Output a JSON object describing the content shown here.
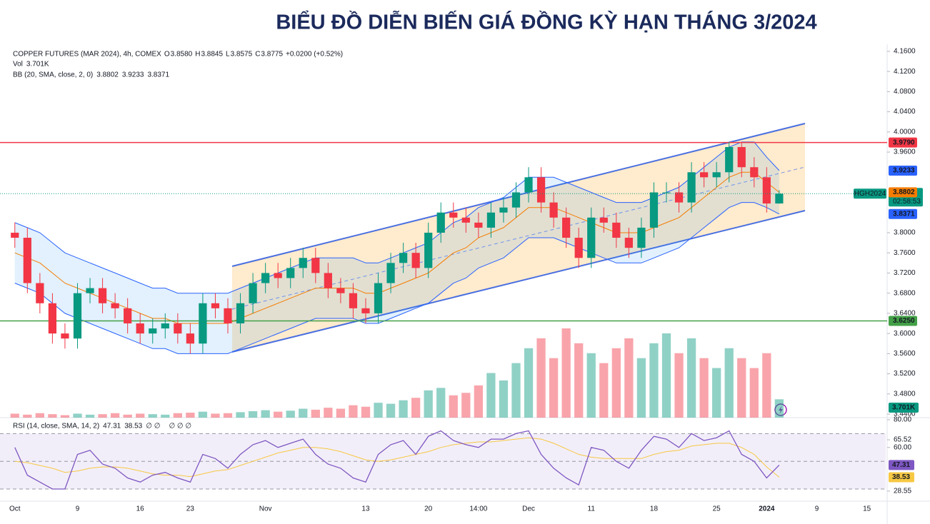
{
  "page_title": "BIỂU ĐỒ DIỄN BIẾN GIÁ ĐỒNG KỲ HẠN THÁNG 3/2024",
  "chart_data": {
    "type": "candlestick",
    "header": {
      "symbol": "COPPER FUTURES (MAR 2024), 4h, COMEX",
      "items": [
        {
          "label": "O",
          "value": "3.8580"
        },
        {
          "label": "H",
          "value": "3.8845"
        },
        {
          "label": "L",
          "value": "3.8575"
        },
        {
          "label": "C",
          "value": "3.8775"
        }
      ],
      "change": "+0.0200 (+0.52%)"
    },
    "up_color": "#089981",
    "down_color": "#f23645",
    "categories": [
      "Oct",
      null,
      null,
      null,
      null,
      "9",
      null,
      null,
      null,
      null,
      "16",
      null,
      null,
      null,
      "23",
      null,
      null,
      null,
      null,
      null,
      "Nov",
      null,
      null,
      null,
      null,
      null,
      null,
      null,
      "13",
      null,
      null,
      null,
      null,
      "20",
      null,
      null,
      null,
      "14:00",
      null,
      null,
      null,
      "Dec",
      null,
      null,
      null,
      null,
      "11",
      null,
      null,
      null,
      null,
      "18",
      null,
      null,
      null,
      null,
      "25",
      null,
      null,
      null,
      "2024",
      null,
      null,
      null,
      "9",
      null,
      null,
      null,
      "15",
      null
    ],
    "candles": [
      [
        3.8,
        3.82,
        3.77,
        3.79
      ],
      [
        3.79,
        3.81,
        3.68,
        3.7
      ],
      [
        3.7,
        3.72,
        3.64,
        3.66
      ],
      [
        3.66,
        3.68,
        3.58,
        3.6
      ],
      [
        3.6,
        3.62,
        3.57,
        3.59
      ],
      [
        3.59,
        3.7,
        3.57,
        3.68
      ],
      [
        3.68,
        3.71,
        3.66,
        3.69
      ],
      [
        3.69,
        3.71,
        3.64,
        3.66
      ],
      [
        3.66,
        3.68,
        3.63,
        3.65
      ],
      [
        3.65,
        3.67,
        3.6,
        3.62
      ],
      [
        3.62,
        3.64,
        3.58,
        3.6
      ],
      [
        3.6,
        3.63,
        3.58,
        3.61
      ],
      [
        3.61,
        3.64,
        3.59,
        3.62
      ],
      [
        3.62,
        3.64,
        3.58,
        3.6
      ],
      [
        3.6,
        3.62,
        3.56,
        3.58
      ],
      [
        3.58,
        3.68,
        3.56,
        3.66
      ],
      [
        3.66,
        3.68,
        3.63,
        3.65
      ],
      [
        3.65,
        3.67,
        3.6,
        3.62
      ],
      [
        3.62,
        3.68,
        3.6,
        3.66
      ],
      [
        3.66,
        3.72,
        3.64,
        3.7
      ],
      [
        3.7,
        3.74,
        3.68,
        3.72
      ],
      [
        3.72,
        3.74,
        3.69,
        3.71
      ],
      [
        3.71,
        3.75,
        3.69,
        3.73
      ],
      [
        3.73,
        3.77,
        3.71,
        3.75
      ],
      [
        3.75,
        3.77,
        3.7,
        3.72
      ],
      [
        3.72,
        3.74,
        3.67,
        3.69
      ],
      [
        3.69,
        3.71,
        3.66,
        3.68
      ],
      [
        3.68,
        3.7,
        3.63,
        3.65
      ],
      [
        3.65,
        3.67,
        3.62,
        3.64
      ],
      [
        3.64,
        3.72,
        3.62,
        3.7
      ],
      [
        3.7,
        3.76,
        3.68,
        3.74
      ],
      [
        3.74,
        3.78,
        3.72,
        3.76
      ],
      [
        3.76,
        3.78,
        3.71,
        3.73
      ],
      [
        3.73,
        3.82,
        3.71,
        3.8
      ],
      [
        3.8,
        3.86,
        3.78,
        3.84
      ],
      [
        3.84,
        3.86,
        3.81,
        3.83
      ],
      [
        3.83,
        3.85,
        3.8,
        3.82
      ],
      [
        3.82,
        3.84,
        3.79,
        3.81
      ],
      [
        3.81,
        3.86,
        3.79,
        3.84
      ],
      [
        3.84,
        3.87,
        3.82,
        3.85
      ],
      [
        3.85,
        3.9,
        3.83,
        3.88
      ],
      [
        3.88,
        3.93,
        3.86,
        3.91
      ],
      [
        3.91,
        3.93,
        3.84,
        3.86
      ],
      [
        3.86,
        3.88,
        3.81,
        3.83
      ],
      [
        3.83,
        3.85,
        3.77,
        3.79
      ],
      [
        3.79,
        3.81,
        3.73,
        3.75
      ],
      [
        3.75,
        3.85,
        3.73,
        3.83
      ],
      [
        3.83,
        3.85,
        3.8,
        3.82
      ],
      [
        3.82,
        3.84,
        3.77,
        3.79
      ],
      [
        3.79,
        3.81,
        3.75,
        3.77
      ],
      [
        3.77,
        3.83,
        3.75,
        3.81
      ],
      [
        3.81,
        3.9,
        3.79,
        3.88
      ],
      [
        3.88,
        3.9,
        3.86,
        3.88
      ],
      [
        3.88,
        3.9,
        3.84,
        3.86
      ],
      [
        3.86,
        3.94,
        3.84,
        3.92
      ],
      [
        3.92,
        3.94,
        3.89,
        3.91
      ],
      [
        3.91,
        3.94,
        3.89,
        3.92
      ],
      [
        3.92,
        3.98,
        3.9,
        3.97
      ],
      [
        3.97,
        3.98,
        3.91,
        3.93
      ],
      [
        3.93,
        3.95,
        3.89,
        3.91
      ],
      [
        3.91,
        3.93,
        3.84,
        3.858
      ],
      [
        3.858,
        3.8845,
        3.8575,
        3.8775
      ],
      null,
      null,
      null,
      null,
      null,
      null,
      null,
      null
    ],
    "ylim": [
      3.433,
      4.174
    ],
    "yticks": [
      {
        "value": 4.16,
        "label": "4.1600"
      },
      {
        "value": 4.12,
        "label": "4.1200"
      },
      {
        "value": 4.08,
        "label": "4.0800"
      },
      {
        "value": 4.04,
        "label": "4.0400"
      },
      {
        "value": 4.0,
        "label": "4.0000"
      },
      {
        "value": 3.96,
        "label": "3.9600"
      },
      {
        "value": 3.8,
        "label": "3.8000"
      },
      {
        "value": 3.76,
        "label": "3.7600"
      },
      {
        "value": 3.72,
        "label": "3.7200"
      },
      {
        "value": 3.68,
        "label": "3.6800"
      },
      {
        "value": 3.64,
        "label": "3.6400"
      },
      {
        "value": 3.6,
        "label": "3.6000"
      },
      {
        "value": 3.56,
        "label": "3.5600"
      },
      {
        "value": 3.52,
        "label": "3.5200"
      },
      {
        "value": 3.48,
        "label": "3.4800"
      },
      {
        "value": 3.44,
        "label": "3.4400"
      }
    ],
    "levels": [
      {
        "value": 3.979,
        "label": "3.9790",
        "color": "#f23645"
      },
      {
        "value": 3.625,
        "label": "3.6250",
        "color": "#43a047"
      }
    ],
    "last_price": {
      "symbol": "HGH2024",
      "label": "3.8775",
      "countdown": "02:58:53"
    },
    "volume": {
      "name": "Vol",
      "label": "3.701K",
      "values": [
        0.8,
        0.6,
        0.9,
        0.7,
        0.5,
        0.8,
        0.6,
        0.7,
        0.9,
        0.6,
        0.8,
        0.7,
        0.6,
        0.9,
        1.0,
        1.2,
        0.8,
        0.9,
        1.1,
        1.3,
        1.5,
        1.2,
        1.4,
        1.8,
        1.6,
        2.0,
        1.8,
        2.5,
        2.2,
        3.0,
        2.8,
        3.5,
        4.0,
        5.5,
        6.0,
        4.5,
        5.0,
        6.5,
        9.0,
        7.5,
        11,
        14,
        16,
        12,
        18,
        15,
        13,
        11,
        14,
        16,
        12,
        15,
        17,
        13,
        16,
        12,
        10,
        14,
        12,
        10,
        13,
        3.701,
        null,
        null,
        null,
        null,
        null,
        null,
        null,
        null
      ]
    },
    "bb": {
      "name": "BB (20, SMA, close, 2, 0)",
      "middle_label": "3.8802",
      "upper_label": "3.9233",
      "lower_label": "3.8371",
      "middle_color": "#f57c00",
      "band_color": "#2962ff",
      "middle": [
        3.76,
        3.75,
        3.74,
        3.72,
        3.7,
        3.69,
        3.68,
        3.67,
        3.66,
        3.65,
        3.64,
        3.63,
        3.63,
        3.62,
        3.62,
        3.62,
        3.62,
        3.62,
        3.63,
        3.64,
        3.65,
        3.66,
        3.67,
        3.68,
        3.69,
        3.69,
        3.69,
        3.69,
        3.68,
        3.68,
        3.69,
        3.7,
        3.71,
        3.72,
        3.74,
        3.76,
        3.77,
        3.79,
        3.8,
        3.81,
        3.83,
        3.85,
        3.85,
        3.85,
        3.84,
        3.83,
        3.82,
        3.81,
        3.8,
        3.8,
        3.8,
        3.81,
        3.82,
        3.83,
        3.85,
        3.87,
        3.89,
        3.91,
        3.92,
        3.92,
        3.9,
        3.8802,
        null,
        null,
        null,
        null,
        null,
        null,
        null,
        null
      ],
      "upper": [
        3.82,
        3.81,
        3.8,
        3.78,
        3.76,
        3.75,
        3.74,
        3.73,
        3.72,
        3.71,
        3.7,
        3.69,
        3.69,
        3.68,
        3.68,
        3.68,
        3.68,
        3.68,
        3.69,
        3.7,
        3.71,
        3.72,
        3.73,
        3.74,
        3.75,
        3.75,
        3.75,
        3.75,
        3.74,
        3.74,
        3.75,
        3.76,
        3.77,
        3.78,
        3.8,
        3.82,
        3.83,
        3.85,
        3.86,
        3.87,
        3.89,
        3.91,
        3.91,
        3.91,
        3.9,
        3.89,
        3.88,
        3.87,
        3.86,
        3.86,
        3.86,
        3.87,
        3.88,
        3.89,
        3.91,
        3.93,
        3.95,
        3.97,
        3.98,
        3.98,
        3.95,
        3.9233,
        null,
        null,
        null,
        null,
        null,
        null,
        null,
        null
      ],
      "lower": [
        3.7,
        3.69,
        3.68,
        3.66,
        3.64,
        3.63,
        3.62,
        3.61,
        3.6,
        3.59,
        3.58,
        3.57,
        3.57,
        3.56,
        3.56,
        3.56,
        3.56,
        3.56,
        3.57,
        3.58,
        3.59,
        3.6,
        3.61,
        3.62,
        3.63,
        3.63,
        3.63,
        3.63,
        3.62,
        3.62,
        3.63,
        3.64,
        3.65,
        3.66,
        3.68,
        3.7,
        3.71,
        3.73,
        3.74,
        3.75,
        3.77,
        3.79,
        3.79,
        3.79,
        3.78,
        3.77,
        3.76,
        3.75,
        3.74,
        3.74,
        3.74,
        3.75,
        3.76,
        3.77,
        3.79,
        3.81,
        3.83,
        3.85,
        3.86,
        3.86,
        3.85,
        3.8371,
        null,
        null,
        null,
        null,
        null,
        null,
        null,
        null
      ]
    },
    "rsi": {
      "name": "RSI (14, close, SMA, 14, 2)",
      "label": "47.31",
      "ma_label": "38.53",
      "extra1": "∅ ∅",
      "extra2": "∅ ∅ ∅",
      "color": "#7e57c2",
      "ma_color": "#f7c843",
      "ylim": [
        22.3,
        81.5
      ],
      "levels": [
        70,
        50,
        30
      ],
      "yticks": [
        {
          "value": 80,
          "label": "80.00"
        },
        {
          "value": 65.52,
          "label": "65.52"
        },
        {
          "value": 60,
          "label": "60.00"
        },
        {
          "value": 28.55,
          "label": "28.55"
        }
      ],
      "values": [
        60,
        40,
        35,
        30,
        30,
        55,
        58,
        48,
        45,
        38,
        35,
        40,
        42,
        38,
        35,
        55,
        52,
        45,
        55,
        62,
        65,
        60,
        63,
        66,
        55,
        48,
        45,
        38,
        35,
        55,
        62,
        65,
        55,
        68,
        72,
        65,
        62,
        60,
        66,
        66,
        70,
        72,
        55,
        45,
        38,
        33,
        60,
        58,
        50,
        45,
        58,
        68,
        66,
        60,
        70,
        65,
        67,
        72,
        55,
        50,
        38,
        47.31,
        null,
        null,
        null,
        null,
        null,
        null,
        null,
        null
      ],
      "ma": [
        50,
        49,
        47,
        45,
        42,
        43,
        45,
        46,
        46,
        45,
        43,
        41,
        40,
        40,
        39,
        41,
        43,
        44,
        47,
        50,
        53,
        56,
        58,
        60,
        60,
        59,
        57,
        54,
        51,
        50,
        51,
        53,
        55,
        57,
        60,
        62,
        63,
        64,
        64,
        65,
        66,
        67,
        66,
        63,
        59,
        55,
        53,
        52,
        52,
        52,
        52,
        55,
        57,
        58,
        61,
        62,
        63,
        63,
        60,
        55,
        46,
        38.53,
        null,
        null,
        null,
        null,
        null,
        null,
        null,
        null
      ]
    }
  }
}
